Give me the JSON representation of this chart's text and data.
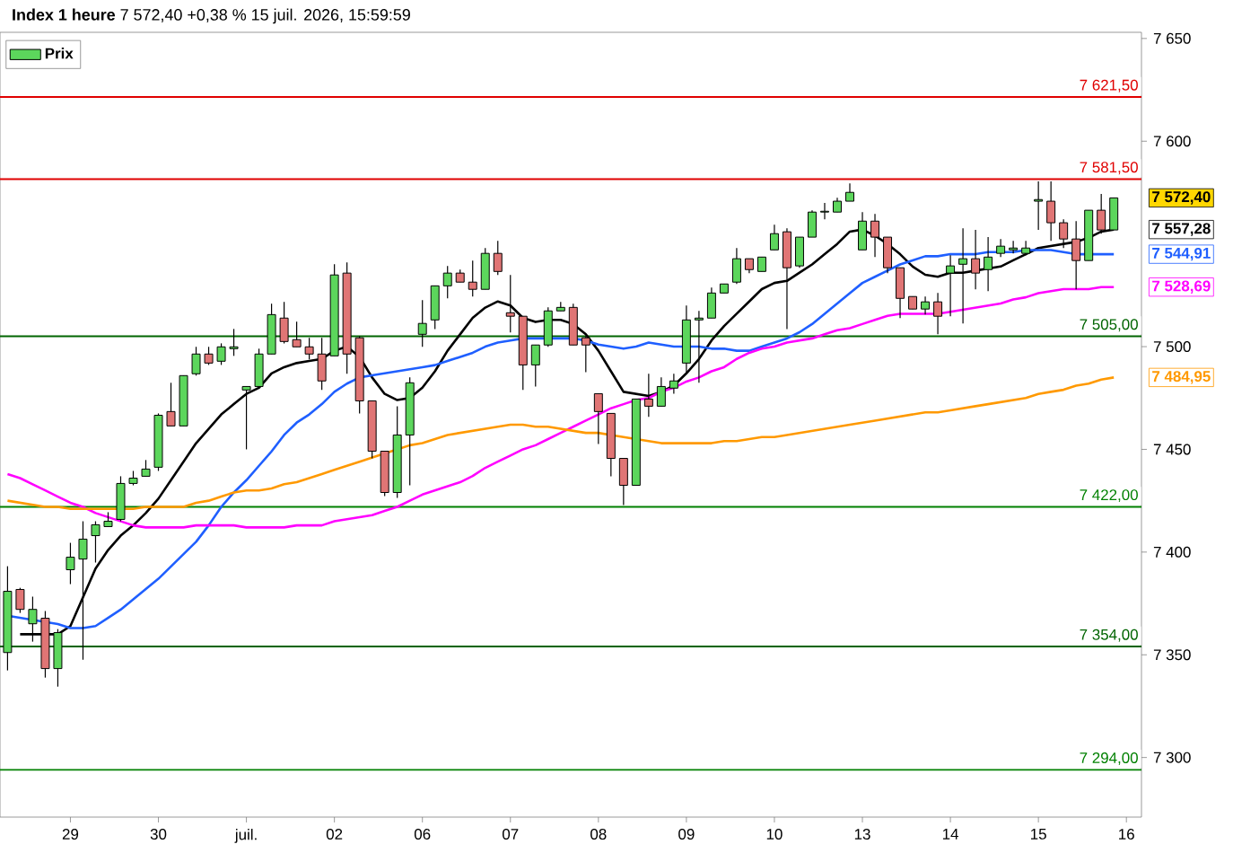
{
  "chart_data": {
    "type": "candlestick",
    "title": "**Index 1 heure** 7 572,40 +0,38 % 15 juil. 2026, 15:59:59",
    "legend": "top left",
    "categories": [
      null,
      null,
      null,
      null,
      null,
      "29",
      null,
      null,
      null,
      null,
      null,
      null,
      "30",
      null,
      null,
      null,
      null,
      null,
      null,
      "juil.",
      null,
      null,
      null,
      null,
      null,
      null,
      "02",
      null,
      null,
      null,
      null,
      null,
      null,
      "06",
      null,
      null,
      null,
      null,
      null,
      null,
      "07",
      null,
      null,
      null,
      null,
      null,
      null,
      "08",
      null,
      null,
      null,
      null,
      null,
      null,
      "09",
      null,
      null,
      null,
      null,
      null,
      null,
      "10",
      null,
      null,
      null,
      null,
      null,
      null,
      "13",
      null,
      null,
      null,
      null,
      null,
      null,
      "14",
      null,
      null,
      null,
      null,
      null,
      null,
      "15",
      null,
      null,
      null,
      null,
      null,
      null,
      "16"
    ],
    "ylim": [
      7271,
      7653
    ],
    "yticks": [
      {
        "value": 7300,
        "label": "7 300"
      },
      {
        "value": 7350,
        "label": "7 350"
      },
      {
        "value": 7400,
        "label": "7 400"
      },
      {
        "value": 7450,
        "label": "7 450"
      },
      {
        "value": 7500,
        "label": "7 500"
      },
      {
        "value": 7600,
        "label": "7 600"
      },
      {
        "value": 7650,
        "label": "7 650"
      }
    ],
    "series": [
      {
        "name": "Prix",
        "ohlc": [
          [
            7351.1,
            7393.1,
            7342.4,
            7380.9
          ],
          [
            7381.8,
            7382.6,
            7370.4,
            7372.1
          ],
          [
            7365.1,
            7378.3,
            7356.4,
            7372.1
          ],
          [
            7367.8,
            7371.3,
            7338.9,
            7343.3
          ],
          [
            7343.3,
            7362.5,
            7334.5,
            7360.8
          ],
          [
            7391.4,
            7404.5,
            7384.4,
            7397.5
          ],
          [
            7396.6,
            7415,
            7347.6,
            7406.3
          ],
          [
            7408,
            7415,
            7394.9,
            7413.3
          ],
          [
            7412.4,
            7419.4,
            7412.4,
            7415
          ],
          [
            7415.9,
            7436.9,
            7415,
            7433.4
          ],
          [
            7433.4,
            7439.5,
            7432.5,
            7436
          ],
          [
            7436.9,
            7444.8,
            7436.9,
            7440.4
          ],
          [
            7441.3,
            7467.5,
            7439.5,
            7466.6
          ],
          [
            7468.4,
            7482.4,
            7461.4,
            7461.4
          ],
          [
            7461.4,
            7485.9,
            7461.4,
            7485.9
          ],
          [
            7486.8,
            7499.9,
            7485.9,
            7496.4
          ],
          [
            7496.4,
            7499.9,
            7491.1,
            7492
          ],
          [
            7492.9,
            7501.6,
            7491.1,
            7499.9
          ],
          [
            7499,
            7508.6,
            7495.5,
            7499.9
          ],
          [
            7478.9,
            7480.6,
            7450,
            7480.6
          ],
          [
            7480.6,
            7499,
            7480.6,
            7496.4
          ],
          [
            7496.4,
            7520.9,
            7496.4,
            7515.6
          ],
          [
            7513.9,
            7521.8,
            7501.6,
            7502.5
          ],
          [
            7503.4,
            7512.1,
            7499.9,
            7499.9
          ],
          [
            7499.9,
            7504.3,
            7493.8,
            7496.4
          ],
          [
            7496.4,
            7504.3,
            7478.9,
            7483.3
          ],
          [
            7495.5,
            7540.1,
            7495.5,
            7534.9
          ],
          [
            7535.8,
            7541,
            7486.8,
            7496.4
          ],
          [
            7504.3,
            7505.1,
            7467.5,
            7473.6
          ],
          [
            7473.6,
            7473.6,
            7445.6,
            7449.1
          ],
          [
            7449.1,
            7449.1,
            7427.3,
            7429
          ],
          [
            7429,
            7471,
            7426.4,
            7457
          ],
          [
            7457,
            7485,
            7432.5,
            7482.4
          ],
          [
            7506,
            7522.6,
            7499.9,
            7511.3
          ],
          [
            7513,
            7529.6,
            7508.6,
            7529.6
          ],
          [
            7529.6,
            7539.3,
            7523.5,
            7535.8
          ],
          [
            7535.8,
            7537.5,
            7531.4,
            7531.4
          ],
          [
            7531.4,
            7541.9,
            7524.4,
            7527.9
          ],
          [
            7527.9,
            7548,
            7527.9,
            7545.4
          ],
          [
            7545.4,
            7551.5,
            7534.9,
            7536.6
          ],
          [
            7516.5,
            7534.9,
            7506.9,
            7514.8
          ],
          [
            7514.8,
            7514.8,
            7478.9,
            7491.1
          ],
          [
            7491.1,
            7500.8,
            7480.6,
            7500.8
          ],
          [
            7500.8,
            7519.1,
            7499.9,
            7517.4
          ],
          [
            7517.4,
            7521.8,
            7517.4,
            7519.1
          ],
          [
            7519.1,
            7520.9,
            7500.8,
            7500.8
          ],
          [
            7504.3,
            7505.1,
            7487.6,
            7500.8
          ],
          [
            7477.1,
            7477.1,
            7452.6,
            7468.4
          ],
          [
            7467.5,
            7467.5,
            7436.9,
            7445.6
          ],
          [
            7445.6,
            7445.6,
            7422.9,
            7432.5
          ],
          [
            7432.5,
            7474.5,
            7432.5,
            7474.5
          ],
          [
            7474.5,
            7486.8,
            7465.8,
            7471
          ],
          [
            7471,
            7485,
            7471,
            7480.6
          ],
          [
            7479.8,
            7486.8,
            7477.1,
            7483.3
          ],
          [
            7492,
            7520,
            7486.8,
            7513
          ],
          [
            7513,
            7517.4,
            7482.4,
            7513.9
          ],
          [
            7513.9,
            7528.8,
            7513.9,
            7526.1
          ],
          [
            7526.1,
            7530.5,
            7526.1,
            7530.5
          ],
          [
            7531.4,
            7548,
            7530.5,
            7542.8
          ],
          [
            7542.8,
            7542.8,
            7535.8,
            7537.5
          ],
          [
            7536.6,
            7543.6,
            7536.6,
            7543.6
          ],
          [
            7547.1,
            7559.4,
            7547.1,
            7555
          ],
          [
            7555.9,
            7557.6,
            7508.6,
            7538.4
          ],
          [
            7539.3,
            7553.3,
            7538.4,
            7553.3
          ],
          [
            7553.3,
            7566.4,
            7553.3,
            7565.5
          ],
          [
            7565.5,
            7569.9,
            7562,
            7565.9
          ],
          [
            7565.5,
            7572.5,
            7565.5,
            7570.8
          ],
          [
            7570.8,
            7579.5,
            7570.8,
            7575.1
          ],
          [
            7547.1,
            7565.5,
            7547.1,
            7561.1
          ],
          [
            7561.1,
            7564.6,
            7543.6,
            7553.3
          ],
          [
            7553.3,
            7553.3,
            7535.8,
            7538.4
          ],
          [
            7538.4,
            7538.4,
            7513.9,
            7523.5
          ],
          [
            7524.4,
            7524.4,
            7518.3,
            7518.3
          ],
          [
            7518.3,
            7524.4,
            7515.6,
            7521.8
          ],
          [
            7521.8,
            7526.1,
            7506,
            7514.8
          ],
          [
            7535.8,
            7544.5,
            7514.8,
            7539.3
          ],
          [
            7540.1,
            7557.6,
            7511.3,
            7542.8
          ],
          [
            7542.8,
            7556.8,
            7527.9,
            7535.8
          ],
          [
            7537.5,
            7553.3,
            7527,
            7543.6
          ],
          [
            7545.4,
            7552.4,
            7543.6,
            7548.9
          ],
          [
            7547.1,
            7551.5,
            7545.4,
            7548
          ],
          [
            7545.4,
            7551.5,
            7544.5,
            7548
          ],
          [
            7570.8,
            7580.4,
            7556.8,
            7571.6
          ],
          [
            7570.8,
            7580.4,
            7551.5,
            7560.3
          ],
          [
            7560.3,
            7562,
            7548,
            7552.4
          ],
          [
            7552.4,
            7561.1,
            7527.9,
            7541.9
          ],
          [
            7541.9,
            7566.4,
            7541.9,
            7566.4
          ],
          [
            7566.4,
            7574.3,
            7555,
            7556.8
          ],
          [
            7556.8,
            7572.4,
            7556.8,
            7572.4
          ],
          null
        ],
        "colors": [
          "#5cd65c",
          "#e07575",
          "#5cd65c",
          "#e07575",
          "#5cd65c",
          "#5cd65c",
          "#5cd65c",
          "#5cd65c",
          "#5cd65c",
          "#5cd65c",
          "#5cd65c",
          "#5cd65c",
          "#5cd65c",
          "#e07575",
          "#5cd65c",
          "#5cd65c",
          "#e07575",
          "#5cd65c",
          "#5cd65c",
          "#5cd65c",
          "#5cd65c",
          "#5cd65c",
          "#e07575",
          "#e07575",
          "#e07575",
          "#e07575",
          "#5cd65c",
          "#e07575",
          "#e07575",
          "#e07575",
          "#e07575",
          "#5cd65c",
          "#5cd65c",
          "#5cd65c",
          "#5cd65c",
          "#5cd65c",
          "#e07575",
          "#e07575",
          "#5cd65c",
          "#e07575",
          "#e07575",
          "#e07575",
          "#5cd65c",
          "#5cd65c",
          "#5cd65c",
          "#e07575",
          "#e07575",
          "#e07575",
          "#e07575",
          "#e07575",
          "#5cd65c",
          "#e07575",
          "#5cd65c",
          "#5cd65c",
          "#5cd65c",
          "#5cd65c",
          "#5cd65c",
          "#5cd65c",
          "#5cd65c",
          "#e07575",
          "#5cd65c",
          "#5cd65c",
          "#e07575",
          "#5cd65c",
          "#5cd65c",
          "#5cd65c",
          "#5cd65c",
          "#5cd65c",
          "#5cd65c",
          "#e07575",
          "#e07575",
          "#e07575",
          "#e07575",
          "#5cd65c",
          "#e07575",
          "#5cd65c",
          "#5cd65c",
          "#e07575",
          "#5cd65c",
          "#5cd65c",
          "#5cd65c",
          "#5cd65c",
          "#5cd65c",
          "#e07575",
          "#e07575",
          "#e07575",
          "#5cd65c",
          "#e07575",
          "#5cd65c",
          null
        ]
      },
      {
        "type": "line",
        "color": "#000000",
        "values": [
          null,
          7360,
          7360,
          7360,
          7360,
          7364,
          7378,
          7392,
          7401,
          7408,
          7413,
          7419,
          7426,
          7435,
          7444,
          7453,
          7460,
          7467,
          7472,
          7477,
          7480,
          7487,
          7490,
          7492,
          7493,
          7494,
          7498,
          7500,
          7495,
          7485,
          7477,
          7474,
          7475,
          7480,
          7488,
          7498,
          7506,
          7514,
          7519,
          7522,
          7520,
          7514,
          7512,
          7513,
          7513,
          7511,
          7506,
          7498,
          7488,
          7478,
          7477,
          7476,
          7478,
          7481,
          7487,
          7494,
          7503,
          7510,
          7516,
          7522,
          7528,
          7531,
          7532,
          7536,
          7540,
          7545,
          7550,
          7556,
          7557,
          7554,
          7550,
          7545,
          7539,
          7535,
          7534,
          7536,
          7536,
          7537,
          7538,
          7539,
          7542,
          7545,
          7548,
          7549,
          7550,
          7551,
          7553,
          7556,
          7557,
          null
        ]
      },
      {
        "type": "line",
        "color": "#1f5fff",
        "values": [
          7369,
          7368,
          7367,
          7366,
          7365,
          7363,
          7363,
          7364,
          7368,
          7372,
          7377,
          7382,
          7387,
          7393,
          7399,
          7405,
          7413,
          7422,
          7429,
          7435,
          7442,
          7449,
          7457,
          7463,
          7467,
          7472,
          7478,
          7482,
          7485,
          7486,
          7487,
          7488,
          7489,
          7490,
          7491,
          7493,
          7495,
          7497,
          7500,
          7502,
          7503,
          7504,
          7504,
          7504,
          7504,
          7504,
          7503,
          7501,
          7500,
          7499,
          7500,
          7502,
          7501,
          7500,
          7500,
          7500,
          7499,
          7499,
          7498,
          7498,
          7500,
          7502,
          7504,
          7507,
          7511,
          7516,
          7521,
          7526,
          7531,
          7534,
          7537,
          7540,
          7542,
          7544,
          7544,
          7545,
          7545,
          7545,
          7546,
          7546,
          7546,
          7547,
          7547,
          7547,
          7546,
          7545,
          7545,
          7545,
          7545,
          null
        ]
      },
      {
        "type": "line",
        "color": "#ff00ff",
        "values": [
          7438,
          7436,
          7433,
          7430,
          7427,
          7424,
          7422,
          7419,
          7417,
          7415,
          7413,
          7412,
          7412,
          7412,
          7412,
          7413,
          7413,
          7413,
          7413,
          7412,
          7412,
          7412,
          7412,
          7413,
          7413,
          7413,
          7415,
          7416,
          7417,
          7418,
          7420,
          7422,
          7425,
          7428,
          7430,
          7432,
          7434,
          7437,
          7441,
          7444,
          7447,
          7450,
          7452,
          7455,
          7458,
          7461,
          7464,
          7467,
          7470,
          7472,
          7474,
          7475,
          7478,
          7480,
          7483,
          7485,
          7488,
          7490,
          7494,
          7497,
          7499,
          7500,
          7502,
          7503,
          7504,
          7506,
          7508,
          7509,
          7511,
          7513,
          7515,
          7516,
          7516,
          7516,
          7516,
          7517,
          7518,
          7519,
          7520,
          7521,
          7523,
          7524,
          7526,
          7527,
          7528,
          7528,
          7528,
          7529,
          7529,
          null
        ]
      },
      {
        "type": "line",
        "color": "#ff9900",
        "values": [
          7425,
          7424,
          7423,
          7422,
          7422,
          7421,
          7421,
          7421,
          7421,
          7421,
          7421,
          7422,
          7422,
          7422,
          7422,
          7424,
          7425,
          7427,
          7429,
          7430,
          7430,
          7431,
          7433,
          7434,
          7436,
          7438,
          7440,
          7442,
          7444,
          7446,
          7448,
          7450,
          7452,
          7453,
          7455,
          7457,
          7458,
          7459,
          7460,
          7461,
          7462,
          7462,
          7461,
          7461,
          7460,
          7459,
          7458,
          7458,
          7457,
          7456,
          7455,
          7454,
          7453,
          7453,
          7453,
          7453,
          7453,
          7454,
          7454,
          7455,
          7456,
          7456,
          7457,
          7458,
          7459,
          7460,
          7461,
          7462,
          7463,
          7464,
          7465,
          7466,
          7467,
          7468,
          7468,
          7469,
          7470,
          7471,
          7472,
          7473,
          7474,
          7475,
          7477,
          7478,
          7479,
          7481,
          7482,
          7484,
          7485,
          null
        ]
      }
    ],
    "ref_lines": [
      {
        "axis": "y",
        "value": 7621.5,
        "label": "7 621,50",
        "color": "#e00000"
      },
      {
        "axis": "y",
        "value": 7581.5,
        "label": "7 581,50",
        "color": "#e00000"
      },
      {
        "axis": "y",
        "value": 7505,
        "label": "7 505,00",
        "color": "#006400"
      },
      {
        "axis": "y",
        "value": 7422,
        "label": "7 422,00",
        "color": "#008000"
      },
      {
        "axis": "y",
        "value": 7354,
        "label": "7 354,00",
        "color": "#006400"
      },
      {
        "axis": "y",
        "value": 7294,
        "label": "7 294,00",
        "color": "#008000"
      }
    ],
    "annotations": [
      "7 572,40",
      "7 557,28",
      "7 544,91",
      "7 528,69",
      "7 484,95"
    ]
  }
}
